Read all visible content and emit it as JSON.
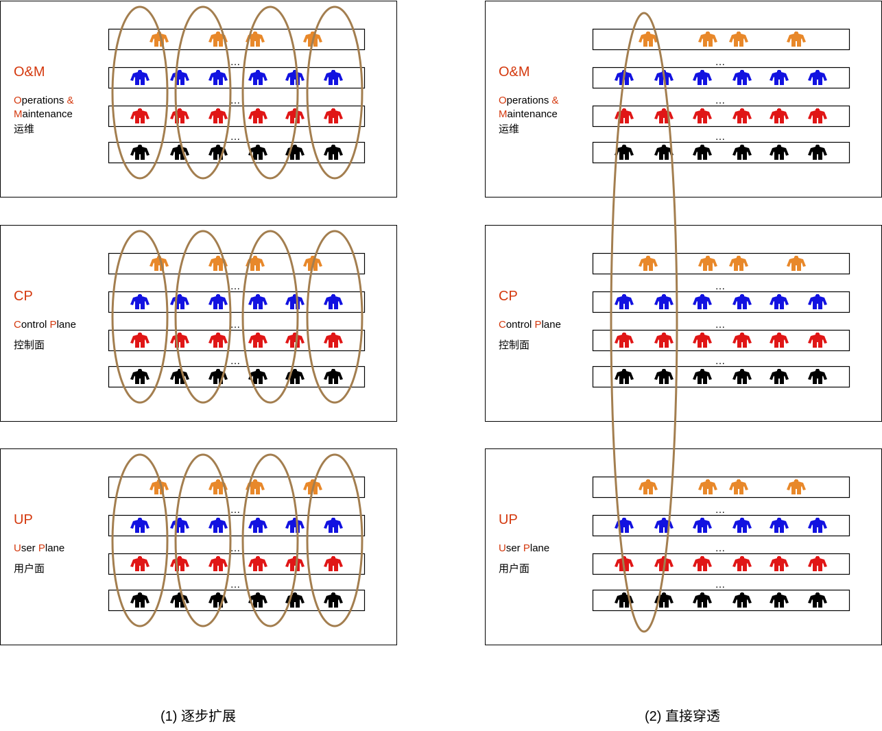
{
  "colors": {
    "accent_red": "#d4380d",
    "ellipse": "#a37e4f",
    "orange_person": "#e8882a",
    "blue_person": "#1212e0",
    "red_person": "#e01616",
    "black_person": "#000000",
    "frame": "#000000",
    "text": "#000000"
  },
  "icon": "person-icon",
  "ellipsis": "…",
  "row_colors": [
    "orange",
    "blue",
    "red",
    "black"
  ],
  "planes": [
    {
      "id": "om",
      "title": "O&M",
      "desc_line1": [
        [
          "O",
          "red"
        ],
        [
          "perations ",
          "black"
        ],
        [
          "&",
          "red"
        ]
      ],
      "desc_line2": [
        [
          "M",
          "red"
        ],
        [
          "aintenance",
          "black"
        ]
      ],
      "desc_line3": "运维"
    },
    {
      "id": "cp",
      "title": "CP",
      "desc_line1": [
        [
          "C",
          "red"
        ],
        [
          "ontrol ",
          "black"
        ],
        [
          "P",
          "red"
        ],
        [
          "lane",
          "black"
        ]
      ],
      "desc_line2": [],
      "desc_line3": "控制面"
    },
    {
      "id": "up",
      "title": "UP",
      "desc_line1": [
        [
          "U",
          "red"
        ],
        [
          "ser ",
          "black"
        ],
        [
          "P",
          "red"
        ],
        [
          "lane",
          "black"
        ]
      ],
      "desc_line2": [],
      "desc_line3": "用户面"
    }
  ],
  "panels": [
    {
      "id": "left",
      "caption": "(1) 逐步扩展",
      "ellipse_mode": "per-column",
      "ellipse_count": 4
    },
    {
      "id": "right",
      "caption": "(2) 直接穿透",
      "ellipse_mode": "single-through-all-planes",
      "ellipse_count": 1
    }
  ]
}
